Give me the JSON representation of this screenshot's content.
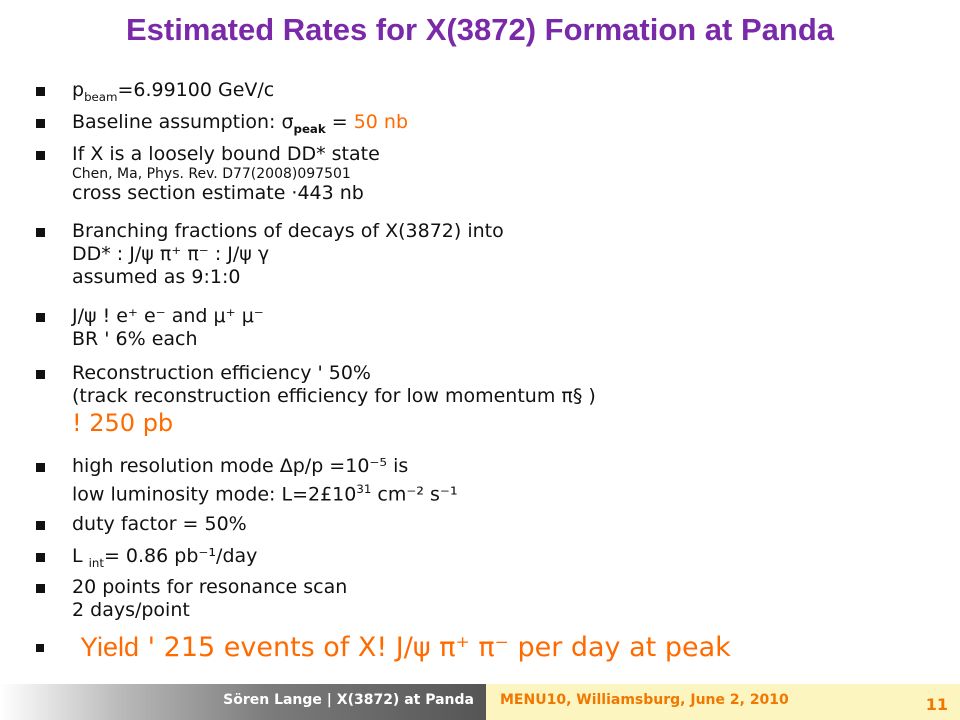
{
  "title": "Estimated Rates for X(3872) Formation at Panda",
  "bullets": [
    {
      "p": "p",
      "sub": "beam",
      "rest": "=6.99100 GeV/c"
    },
    {
      "pre": "Baseline assumption: ",
      "sigma": "σ",
      "sub": "peak",
      "eq": " = ",
      "val": "50 nb"
    },
    {
      "l1": "If X is a loosely bound DD* state",
      "l2": "Chen, Ma, Phys. Rev. D77(2008)097501",
      "l3": "cross section estimate ·443 nb"
    },
    {
      "l1": "Branching fractions of decays of X(3872) into",
      "l2": "DD* : J/ψ π⁺ π⁻ : J/ψ γ",
      "l3": "assumed as 9:1:0"
    },
    {
      "l1": "J/ψ ! e⁺ e⁻ and μ⁺ μ⁻",
      "l2": "BR ' 6% each"
    },
    {
      "l1": "Reconstruction efficiency ' 50%",
      "l2": "(track reconstruction efficiency for low momentum π§ )",
      "l3": "! 250 pb"
    },
    {
      "l1": "high resolution mode Δp/p =10⁻⁵ is",
      "l2a": "low luminosity mode: L=2£10",
      "l2sup": "31",
      "l2b": " cm⁻² s⁻¹"
    },
    {
      "l1": "duty factor  = 50%"
    },
    {
      "a": "L ",
      "sub": "int",
      "b": "= 0.86 pb⁻¹/day"
    },
    {
      "l1": "20 points for resonance scan",
      "l2": "2 days/point"
    },
    {
      "word": "Yield",
      "rest": " ' 215 events of X! J/ψ π⁺ π⁻ per day at peak"
    }
  ],
  "footer": {
    "left": "Sören Lange | X(3872) at Panda",
    "conference": "MENU10, Williamsburg, June 2, 2010",
    "page": "11"
  },
  "colors": {
    "title": "#7a2aa8",
    "highlight": "#ff6a00",
    "footer_right_bg": "#fdf5bf",
    "footer_text": "#f07800"
  }
}
